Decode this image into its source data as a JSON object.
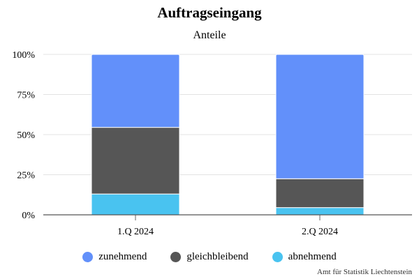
{
  "chart_data": {
    "type": "bar",
    "stacked": true,
    "title": "Auftragseingang",
    "subtitle": "Anteile",
    "categories": [
      "1.Q 2024",
      "2.Q 2024"
    ],
    "series": [
      {
        "name": "abnehmend",
        "values": [
          13,
          4.5
        ],
        "color": "#49c3f0"
      },
      {
        "name": "gleichbleibend",
        "values": [
          41.5,
          18
        ],
        "color": "#565656"
      },
      {
        "name": "zunehmend",
        "values": [
          45.5,
          77.5
        ],
        "color": "#6290fa"
      }
    ],
    "legend_order": [
      "zunehmend",
      "gleichbleibend",
      "abnehmend"
    ],
    "ylim": [
      0,
      100
    ],
    "yticks": [
      0,
      25,
      50,
      75,
      100
    ],
    "ytick_labels": [
      "0%",
      "25%",
      "50%",
      "75%",
      "100%"
    ],
    "grid": true,
    "legend_position": "bottom"
  },
  "source": "Amt für Statistik Liechtenstein"
}
